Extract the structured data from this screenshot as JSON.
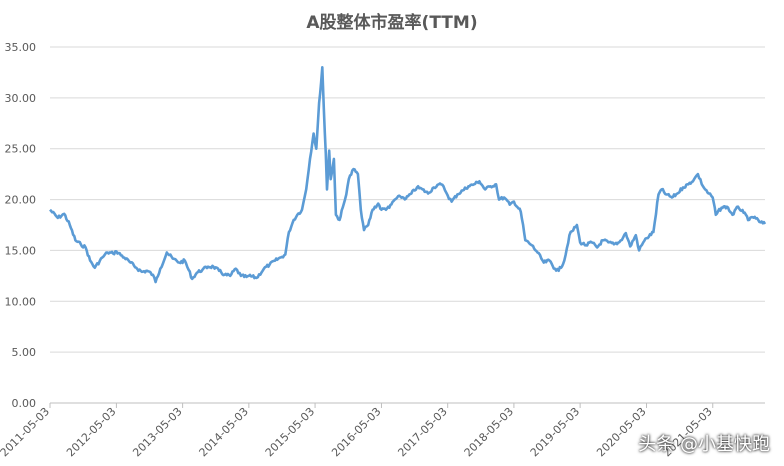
{
  "chart_data": {
    "type": "line",
    "title": "A股整体市盈率(TTM)",
    "xlabel": "",
    "ylabel": "",
    "ylim": [
      0,
      35
    ],
    "yticks": [
      "0.00",
      "5.00",
      "10.00",
      "15.00",
      "20.00",
      "25.00",
      "30.00",
      "35.00"
    ],
    "xticks": [
      "2011-05-03",
      "2012-05-03",
      "2013-05-03",
      "2014-05-03",
      "2015-05-03",
      "2016-05-03",
      "2017-05-03",
      "2018-05-03",
      "2019-05-03",
      "2020-05-03",
      "2021-05-03"
    ],
    "xrange": [
      "2011-05-03",
      "2022-02-15"
    ],
    "grid": true,
    "legend": "none",
    "line_color": "#5b9bd5",
    "series": [
      {
        "points": [
          [
            "2011-05-03",
            19.0
          ],
          [
            "2011-06-15",
            18.2
          ],
          [
            "2011-07-20",
            18.6
          ],
          [
            "2011-08-20",
            17.5
          ],
          [
            "2011-09-20",
            16.0
          ],
          [
            "2011-10-20",
            15.6
          ],
          [
            "2011-11-15",
            15.3
          ],
          [
            "2011-12-10",
            14.0
          ],
          [
            "2012-01-05",
            13.3
          ],
          [
            "2012-02-15",
            14.3
          ],
          [
            "2012-03-15",
            14.8
          ],
          [
            "2012-04-15",
            14.7
          ],
          [
            "2012-05-03",
            14.9
          ],
          [
            "2012-06-15",
            14.3
          ],
          [
            "2012-07-20",
            13.8
          ],
          [
            "2012-08-20",
            13.3
          ],
          [
            "2012-09-20",
            12.9
          ],
          [
            "2012-10-20",
            13.0
          ],
          [
            "2012-11-20",
            12.6
          ],
          [
            "2012-12-05",
            11.9
          ],
          [
            "2012-12-31",
            13.2
          ],
          [
            "2013-02-05",
            14.8
          ],
          [
            "2013-03-10",
            14.2
          ],
          [
            "2013-04-15",
            13.8
          ],
          [
            "2013-05-15",
            14.0
          ],
          [
            "2013-06-25",
            12.2
          ],
          [
            "2013-07-20",
            12.8
          ],
          [
            "2013-08-20",
            13.1
          ],
          [
            "2013-09-20",
            13.4
          ],
          [
            "2013-10-20",
            13.4
          ],
          [
            "2013-11-20",
            13.0
          ],
          [
            "2013-12-20",
            12.6
          ],
          [
            "2014-01-20",
            12.5
          ],
          [
            "2014-02-20",
            13.2
          ],
          [
            "2014-03-20",
            12.5
          ],
          [
            "2014-04-20",
            12.4
          ],
          [
            "2014-05-03",
            12.5
          ],
          [
            "2014-06-15",
            12.3
          ],
          [
            "2014-07-25",
            13.2
          ],
          [
            "2014-08-25",
            13.6
          ],
          [
            "2014-09-25",
            14.0
          ],
          [
            "2014-10-25",
            14.3
          ],
          [
            "2014-11-20",
            14.6
          ],
          [
            "2014-12-10",
            16.8
          ],
          [
            "2015-01-05",
            18.0
          ],
          [
            "2015-01-25",
            18.5
          ],
          [
            "2015-02-20",
            19.0
          ],
          [
            "2015-03-15",
            21.0
          ],
          [
            "2015-04-05",
            24.0
          ],
          [
            "2015-04-25",
            26.5
          ],
          [
            "2015-05-10",
            25.0
          ],
          [
            "2015-05-25",
            29.5
          ],
          [
            "2015-06-05",
            31.5
          ],
          [
            "2015-06-12",
            33.0
          ],
          [
            "2015-06-20",
            29.0
          ],
          [
            "2015-07-01",
            24.5
          ],
          [
            "2015-07-08",
            21.0
          ],
          [
            "2015-07-20",
            24.8
          ],
          [
            "2015-07-28",
            22.0
          ],
          [
            "2015-08-15",
            24.0
          ],
          [
            "2015-08-26",
            18.5
          ],
          [
            "2015-09-15",
            18.0
          ],
          [
            "2015-10-15",
            20.0
          ],
          [
            "2015-11-05",
            22.0
          ],
          [
            "2015-12-01",
            23.0
          ],
          [
            "2015-12-25",
            22.5
          ],
          [
            "2016-01-10",
            19.0
          ],
          [
            "2016-01-28",
            17.0
          ],
          [
            "2016-02-20",
            17.5
          ],
          [
            "2016-03-15",
            19.0
          ],
          [
            "2016-04-15",
            19.6
          ],
          [
            "2016-05-03",
            19.0
          ],
          [
            "2016-06-15",
            19.2
          ],
          [
            "2016-07-15",
            20.0
          ],
          [
            "2016-08-15",
            20.3
          ],
          [
            "2016-09-15",
            20.1
          ],
          [
            "2016-10-15",
            20.6
          ],
          [
            "2016-11-15",
            21.2
          ],
          [
            "2016-12-15",
            21.0
          ],
          [
            "2017-01-15",
            20.6
          ],
          [
            "2017-02-15",
            21.2
          ],
          [
            "2017-03-15",
            21.5
          ],
          [
            "2017-04-10",
            21.3
          ],
          [
            "2017-05-03",
            20.4
          ],
          [
            "2017-05-25",
            19.8
          ],
          [
            "2017-06-25",
            20.5
          ],
          [
            "2017-07-25",
            20.9
          ],
          [
            "2017-08-25",
            21.3
          ],
          [
            "2017-09-25",
            21.5
          ],
          [
            "2017-10-25",
            21.8
          ],
          [
            "2017-11-25",
            21.0
          ],
          [
            "2017-12-25",
            21.3
          ],
          [
            "2018-01-25",
            21.5
          ],
          [
            "2018-02-10",
            20.0
          ],
          [
            "2018-03-10",
            20.2
          ],
          [
            "2018-04-10",
            19.5
          ],
          [
            "2018-05-03",
            19.8
          ],
          [
            "2018-06-10",
            18.8
          ],
          [
            "2018-07-05",
            16.0
          ],
          [
            "2018-08-10",
            15.5
          ],
          [
            "2018-09-10",
            14.8
          ],
          [
            "2018-10-15",
            13.8
          ],
          [
            "2018-11-15",
            14.0
          ],
          [
            "2018-12-15",
            13.2
          ],
          [
            "2019-01-05",
            13.0
          ],
          [
            "2019-02-05",
            14.0
          ],
          [
            "2019-03-05",
            16.5
          ],
          [
            "2019-04-15",
            17.5
          ],
          [
            "2019-05-03",
            15.8
          ],
          [
            "2019-06-05",
            15.5
          ],
          [
            "2019-07-05",
            15.8
          ],
          [
            "2019-08-05",
            15.3
          ],
          [
            "2019-09-05",
            16.0
          ],
          [
            "2019-10-05",
            15.8
          ],
          [
            "2019-11-05",
            15.6
          ],
          [
            "2019-12-05",
            15.8
          ],
          [
            "2020-01-10",
            16.7
          ],
          [
            "2020-02-03",
            15.4
          ],
          [
            "2020-03-05",
            16.5
          ],
          [
            "2020-03-23",
            15.0
          ],
          [
            "2020-04-15",
            15.8
          ],
          [
            "2020-05-03",
            16.2
          ],
          [
            "2020-06-10",
            16.8
          ],
          [
            "2020-07-08",
            20.5
          ],
          [
            "2020-07-25",
            21.0
          ],
          [
            "2020-08-20",
            20.5
          ],
          [
            "2020-09-20",
            20.2
          ],
          [
            "2020-10-20",
            20.6
          ],
          [
            "2020-11-20",
            21.2
          ],
          [
            "2020-12-20",
            21.5
          ],
          [
            "2021-01-20",
            22.0
          ],
          [
            "2021-02-10",
            22.5
          ],
          [
            "2021-03-10",
            21.3
          ],
          [
            "2021-04-10",
            20.6
          ],
          [
            "2021-05-03",
            20.2
          ],
          [
            "2021-05-20",
            18.5
          ],
          [
            "2021-06-20",
            19.2
          ],
          [
            "2021-07-20",
            19.3
          ],
          [
            "2021-08-20",
            18.5
          ],
          [
            "2021-09-20",
            19.3
          ],
          [
            "2021-10-20",
            18.7
          ],
          [
            "2021-11-20",
            18.0
          ],
          [
            "2021-12-20",
            18.3
          ],
          [
            "2022-01-15",
            17.8
          ],
          [
            "2022-02-15",
            17.6
          ]
        ]
      }
    ]
  },
  "watermark": "头条 @小基快跑"
}
